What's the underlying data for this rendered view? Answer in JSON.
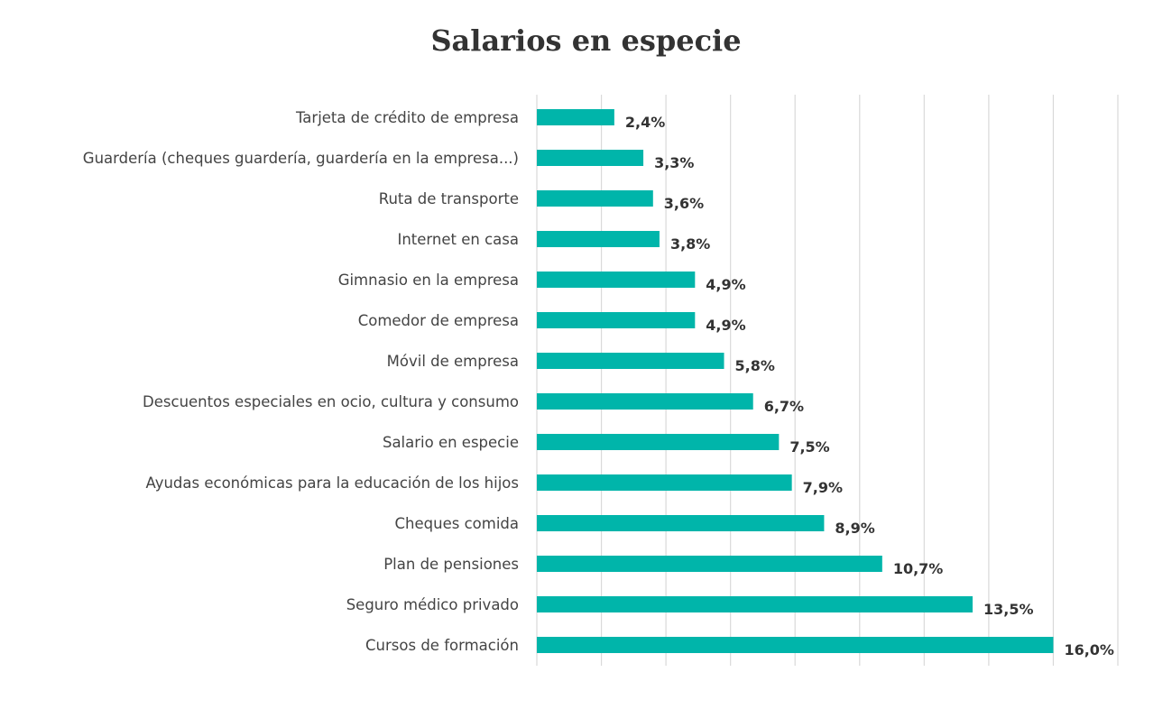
{
  "chart_data": {
    "type": "bar",
    "orientation": "horizontal",
    "title": "Salarios en especie",
    "xlabel": "",
    "ylabel": "",
    "xlim": [
      0,
      18
    ],
    "grid": true,
    "bar_color": "#00B5AA",
    "categories": [
      "Tarjeta de crédito de empresa",
      "Guardería (cheques guardería, guardería en la empresa...)",
      "Ruta de transporte",
      "Internet en casa",
      "Gimnasio en la empresa",
      "Comedor de empresa",
      "Móvil de empresa",
      "Descuentos especiales en ocio, cultura y consumo",
      "Salario en especie",
      "Ayudas económicas para la educación de los hijos",
      "Cheques comida",
      "Plan de pensiones",
      "Seguro médico privado",
      "Cursos de formación"
    ],
    "values": [
      2.4,
      3.3,
      3.6,
      3.8,
      4.9,
      4.9,
      5.8,
      6.7,
      7.5,
      7.9,
      8.9,
      10.7,
      13.5,
      16.0
    ],
    "data_labels": [
      "2,4%",
      "3,3%",
      "3,6%",
      "3,8%",
      "4,9%",
      "4,9%",
      "5,8%",
      "6,7%",
      "7,5%",
      "7,9%",
      "8,9%",
      "10,7%",
      "13,5%",
      "16,0%"
    ]
  }
}
